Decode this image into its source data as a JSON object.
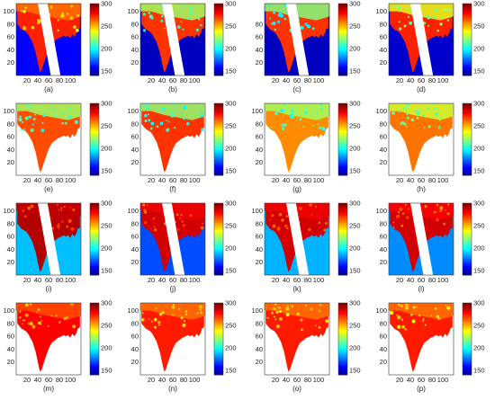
{
  "chart_data": {
    "type": "heatmap",
    "layout": {
      "rows": 4,
      "cols": 4
    },
    "colorbar": {
      "ticks": [
        300,
        250,
        200,
        150
      ],
      "range": [
        140,
        300
      ],
      "colormap": "jet"
    },
    "x_ticks": [
      20,
      40,
      60,
      80,
      100
    ],
    "y_ticks": [
      100,
      80,
      60,
      40,
      20
    ],
    "panels": [
      {
        "label": "(a)",
        "y_ticks": [
          100,
          80,
          60,
          40,
          20
        ],
        "land_value": 275,
        "ocean_value": 160,
        "ocean_fraction": 0.6,
        "north_value": 262,
        "swath": true,
        "ocean_visible": true
      },
      {
        "label": "(b)",
        "y_ticks": [
          100,
          80,
          60,
          40,
          20
        ],
        "land_value": 272,
        "ocean_value": 150,
        "ocean_fraction": 0.6,
        "north_value": 225,
        "swath": true,
        "ocean_visible": true
      },
      {
        "label": "(c)",
        "y_ticks": [
          80,
          60,
          40,
          20
        ],
        "land_value": 272,
        "ocean_value": 150,
        "ocean_fraction": 0.6,
        "north_value": 220,
        "swath": true,
        "ocean_visible": true
      },
      {
        "label": "(d)",
        "y_ticks": [
          100,
          80,
          60,
          40,
          20
        ],
        "land_value": 275,
        "ocean_value": 152,
        "ocean_fraction": 0.6,
        "north_value": 235,
        "swath": true,
        "ocean_visible": true
      },
      {
        "label": "(e)",
        "y_ticks": [
          100,
          80,
          60,
          40,
          20
        ],
        "land_value": 268,
        "ocean_value": 0,
        "ocean_fraction": 0,
        "north_value": 225,
        "swath": false,
        "ocean_visible": false
      },
      {
        "label": "(f)",
        "y_ticks": [
          100,
          80,
          60,
          40,
          20
        ],
        "land_value": 272,
        "ocean_value": 0,
        "ocean_fraction": 0,
        "north_value": 222,
        "swath": false,
        "ocean_visible": false
      },
      {
        "label": "(g)",
        "y_ticks": [
          100,
          80,
          60,
          40,
          20
        ],
        "land_value": 258,
        "ocean_value": 0,
        "ocean_fraction": 0,
        "north_value": 225,
        "swath": false,
        "ocean_visible": false
      },
      {
        "label": "(h)",
        "y_ticks": [
          100,
          80,
          60,
          40,
          20
        ],
        "land_value": 262,
        "ocean_value": 0,
        "ocean_fraction": 0,
        "north_value": 232,
        "swath": false,
        "ocean_visible": false
      },
      {
        "label": "(i)",
        "y_ticks": [
          100,
          80,
          60,
          40,
          20
        ],
        "land_value": 292,
        "ocean_value": 190,
        "ocean_fraction": 0.5,
        "north_value": 290,
        "swath": true,
        "ocean_visible": true
      },
      {
        "label": "(j)",
        "y_ticks": [
          100,
          80,
          60,
          40,
          20
        ],
        "land_value": 287,
        "ocean_value": 172,
        "ocean_fraction": 0.6,
        "north_value": 282,
        "swath": true,
        "ocean_visible": true
      },
      {
        "label": "(k)",
        "y_ticks": [
          100,
          80,
          60,
          40,
          20
        ],
        "land_value": 287,
        "ocean_value": 188,
        "ocean_fraction": 0.6,
        "north_value": 282,
        "swath": true,
        "ocean_visible": true
      },
      {
        "label": "(l)",
        "y_ticks": [
          100,
          80,
          60,
          40,
          20
        ],
        "land_value": 287,
        "ocean_value": 182,
        "ocean_fraction": 0.6,
        "north_value": 280,
        "swath": true,
        "ocean_visible": true
      },
      {
        "label": "(m)",
        "y_ticks": [
          100,
          80,
          60,
          40,
          20
        ],
        "land_value": 280,
        "ocean_value": 0,
        "ocean_fraction": 0,
        "north_value": 268,
        "swath": false,
        "ocean_visible": false
      },
      {
        "label": "(n)",
        "y_ticks": [
          100,
          80,
          60,
          40,
          20
        ],
        "land_value": 276,
        "ocean_value": 0,
        "ocean_fraction": 0,
        "north_value": 262,
        "swath": false,
        "ocean_visible": false
      },
      {
        "label": "(o)",
        "y_ticks": [
          100,
          80,
          60,
          40,
          20
        ],
        "land_value": 276,
        "ocean_value": 0,
        "ocean_fraction": 0,
        "north_value": 262,
        "swath": false,
        "ocean_visible": false
      },
      {
        "label": "(p)",
        "y_ticks": [
          100,
          80,
          60,
          40,
          20
        ],
        "land_value": 276,
        "ocean_value": 0,
        "ocean_fraction": 0,
        "north_value": 262,
        "swath": false,
        "ocean_visible": false
      }
    ]
  }
}
